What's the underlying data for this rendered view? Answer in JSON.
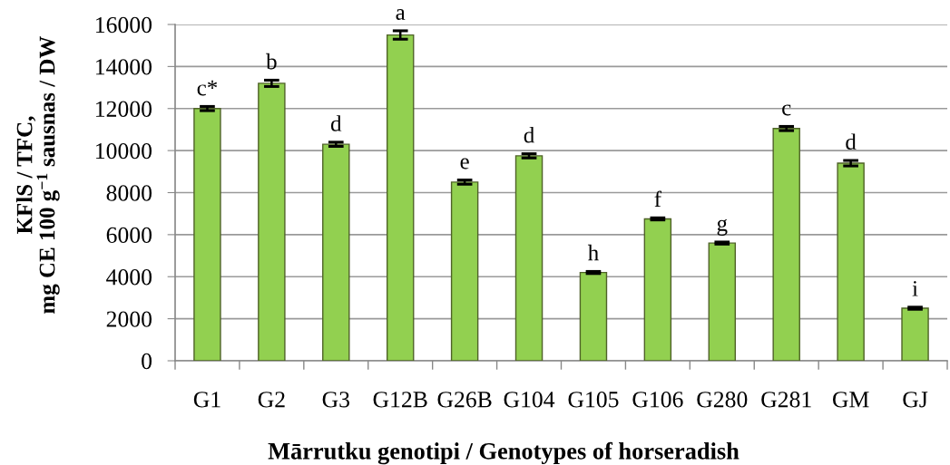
{
  "chart_data": {
    "type": "bar",
    "categories": [
      "G1",
      "G2",
      "G3",
      "G12B",
      "G26B",
      "G104",
      "G105",
      "G106",
      "G280",
      "G281",
      "GM",
      "GJ"
    ],
    "values": [
      12000,
      13200,
      10300,
      15500,
      8500,
      9750,
      4200,
      6750,
      5600,
      11050,
      9400,
      2500
    ],
    "errors": [
      100,
      150,
      100,
      200,
      100,
      100,
      50,
      50,
      50,
      100,
      130,
      50
    ],
    "color": "#92d050",
    "ylim": [
      0,
      16000
    ],
    "yticks": [
      0,
      2000,
      4000,
      6000,
      8000,
      10000,
      12000,
      14000,
      16000
    ],
    "grid": "y",
    "legend": false,
    "xlabel": "Mārrutku genotipi / Genotypes of horseradish",
    "ylabel": "KFlS / TFC,\nmg CE 100 g$^{−1}$ sausnas / DW",
    "annotations": [
      {
        "text": "c*",
        "x": "G1",
        "y": 12000
      },
      {
        "text": "b",
        "x": "G2",
        "y": 13200
      },
      {
        "text": "d",
        "x": "G3",
        "y": 10300
      },
      {
        "text": "a",
        "x": "G12B",
        "y": 15500
      },
      {
        "text": "e",
        "x": "G26B",
        "y": 8500
      },
      {
        "text": "d",
        "x": "G104",
        "y": 9750
      },
      {
        "text": "h",
        "x": "G105",
        "y": 4200
      },
      {
        "text": "f",
        "x": "G106",
        "y": 6750
      },
      {
        "text": "g",
        "x": "G280",
        "y": 5600
      },
      {
        "text": "c",
        "x": "G281",
        "y": 11050
      },
      {
        "text": "d",
        "x": "GM",
        "y": 9400
      },
      {
        "text": "i",
        "x": "GJ",
        "y": 2500
      }
    ]
  }
}
